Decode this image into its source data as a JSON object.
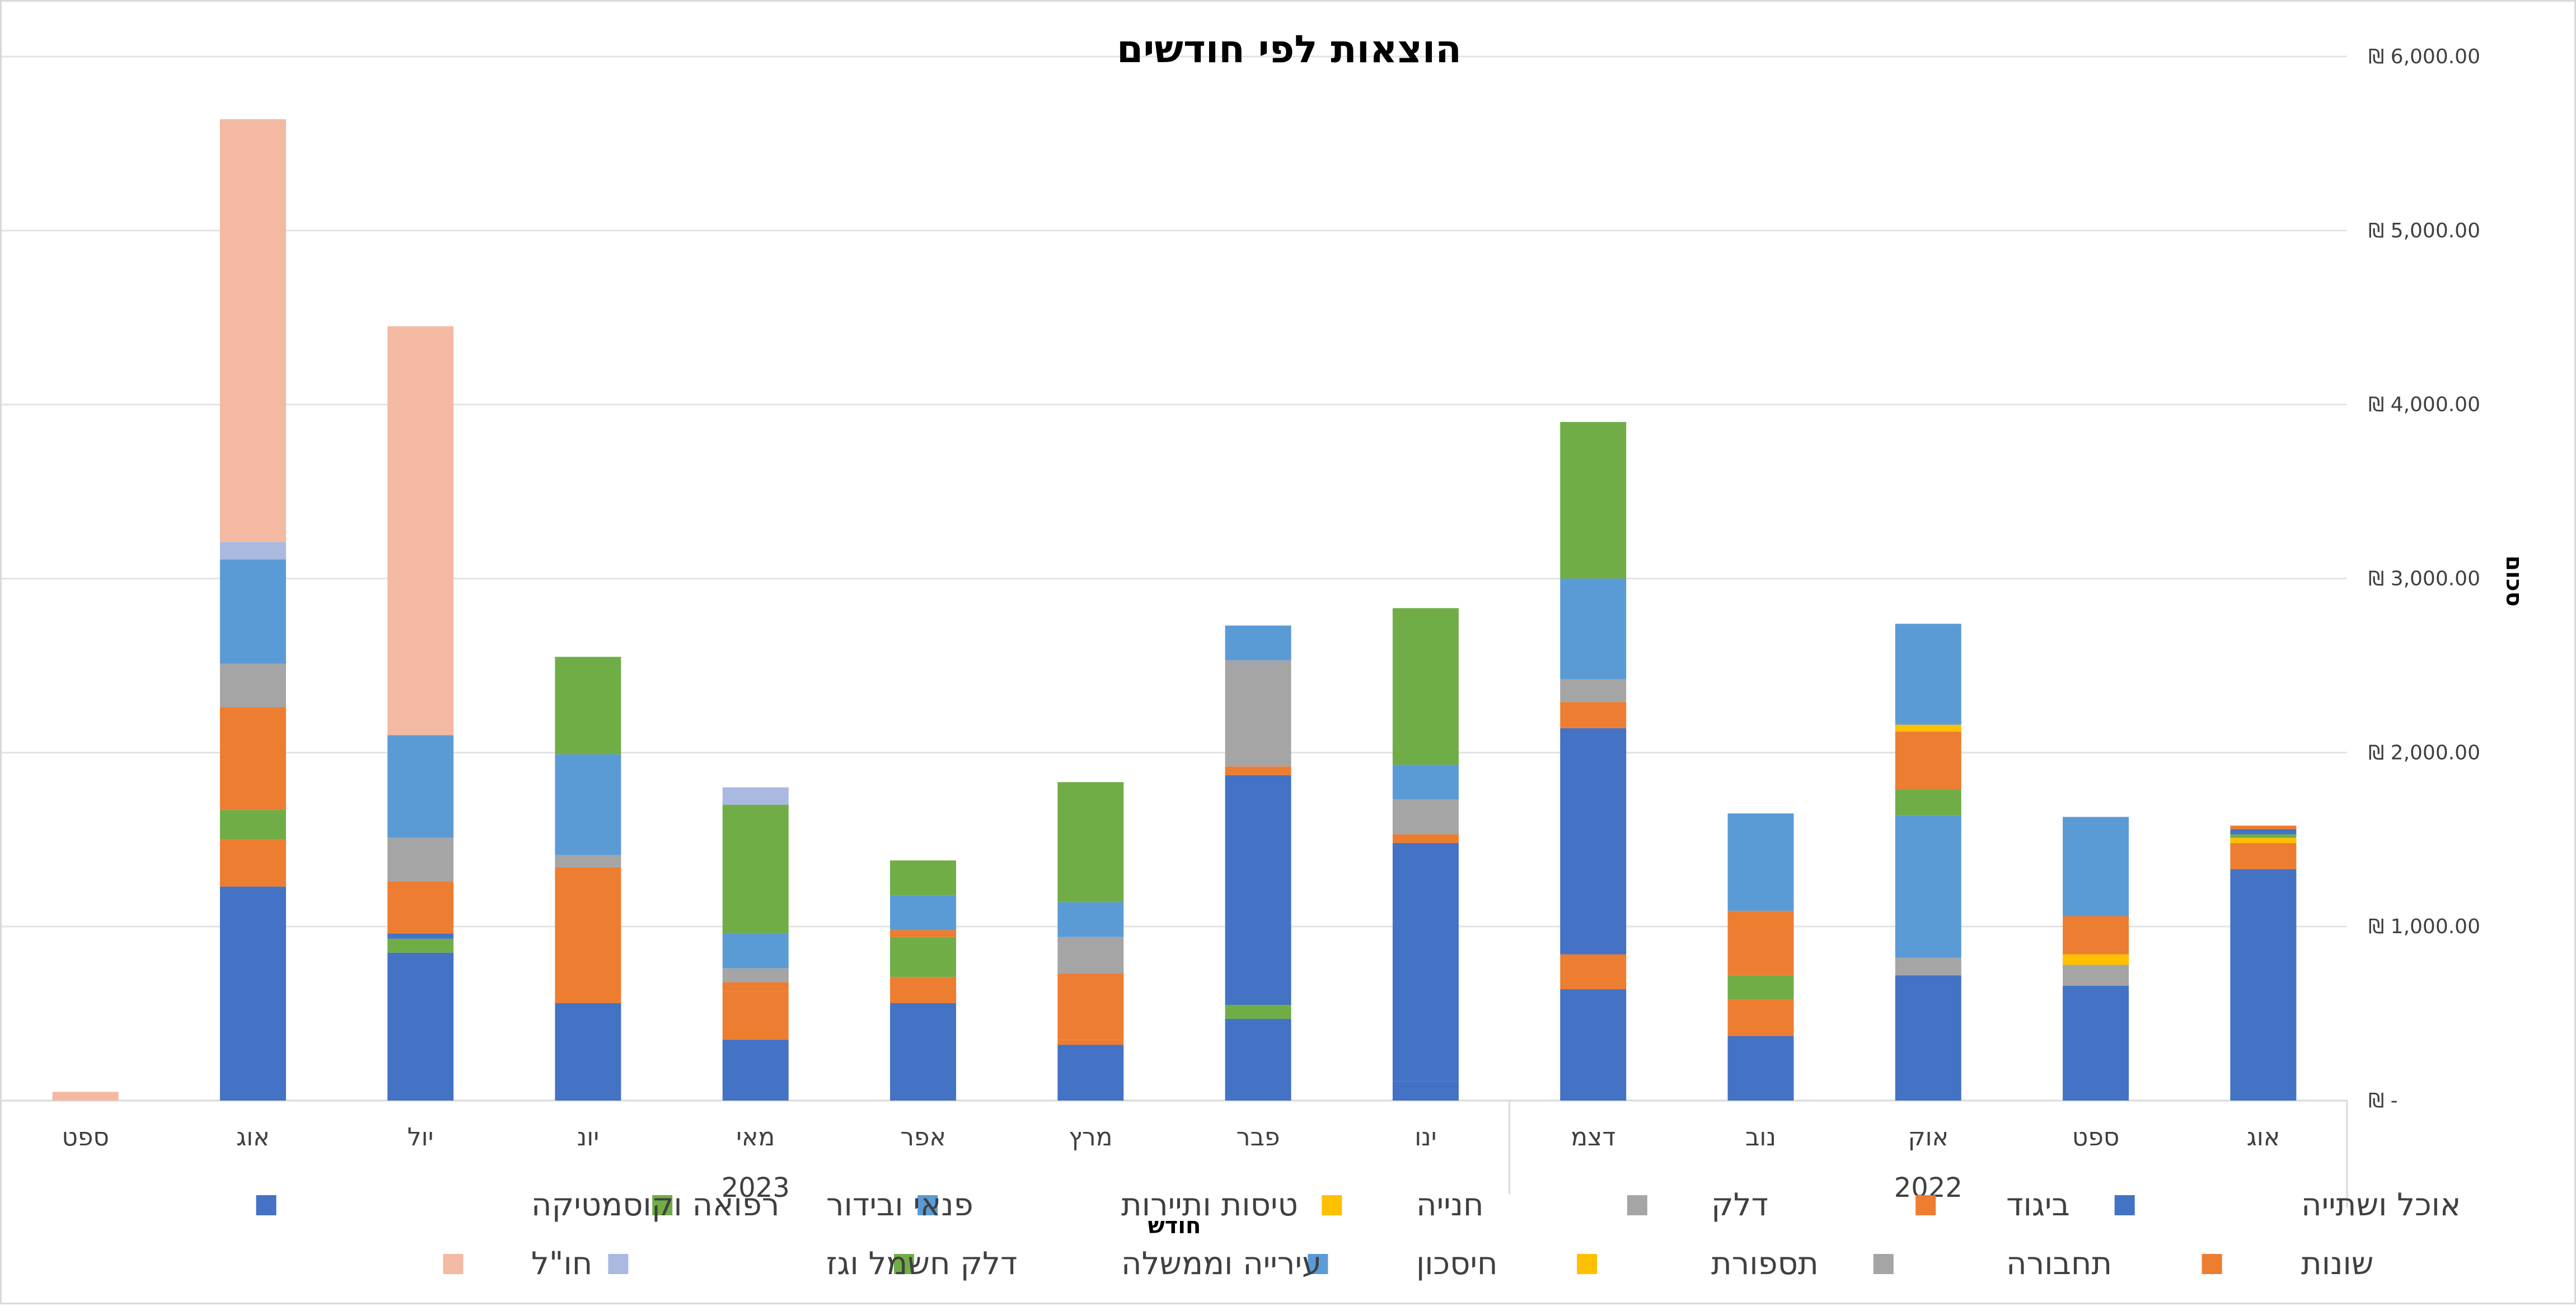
{
  "chart_data": {
    "type": "bar",
    "stacked": true,
    "title": "הוצאות לפי חודשים",
    "xlabel": "חודש",
    "ylabel": "סכום",
    "ylim": [
      0,
      6000
    ],
    "y_ticks": [
      "₪ -",
      "₪ 1,000.00",
      "₪ 2,000.00",
      "₪ 3,000.00",
      "₪ 4,000.00",
      "₪ 5,000.00",
      "₪ 6,000.00"
    ],
    "y_tick_values": [
      0,
      1000,
      2000,
      3000,
      4000,
      5000,
      6000
    ],
    "y_axis_position": "right",
    "x_direction": "right-to-left",
    "grid": true,
    "legend_position": "bottom",
    "categories": [
      "אוג",
      "ספט",
      "אוק",
      "נוב",
      "דצמ",
      "ינו",
      "פבר",
      "מרץ",
      "אפר",
      "מאי",
      "יונ",
      "יול",
      "אוג",
      "ספט"
    ],
    "year_groups": [
      {
        "label": "2022",
        "count": 5
      },
      {
        "label": "2023",
        "count": 9
      }
    ],
    "series": [
      {
        "name": "אוכל ושתייה",
        "color": "#4472C4",
        "values": [
          1330,
          660,
          720,
          370,
          640,
          110,
          470,
          320,
          560,
          350,
          560,
          850,
          1230,
          0
        ]
      },
      {
        "name": "ביגוד",
        "color": "#ED7D31",
        "values": [
          150,
          0,
          0,
          210,
          200,
          0,
          0,
          30,
          150,
          280,
          0,
          0,
          270,
          0
        ]
      },
      {
        "name": "דלק",
        "color": "#A5A5A5",
        "values": [
          0,
          120,
          100,
          0,
          0,
          0,
          0,
          0,
          0,
          0,
          0,
          0,
          0,
          0
        ]
      },
      {
        "name": "חנייה",
        "color": "#FFC000",
        "values": [
          30,
          60,
          0,
          0,
          0,
          0,
          0,
          0,
          0,
          0,
          0,
          0,
          0,
          0
        ]
      },
      {
        "name": "טיסות ותיירות",
        "color": "#5B9BD5",
        "values": [
          0,
          0,
          820,
          0,
          0,
          0,
          0,
          0,
          0,
          0,
          0,
          0,
          0,
          0
        ]
      },
      {
        "name": "פנאי ובידור",
        "color": "#70AD47",
        "values": [
          20,
          0,
          150,
          140,
          0,
          0,
          80,
          0,
          230,
          0,
          0,
          80,
          170,
          0
        ]
      },
      {
        "name": "רפואה וקוסמטיקה",
        "color": "#4472C4",
        "values": [
          30,
          0,
          0,
          0,
          1300,
          1370,
          1320,
          0,
          0,
          0,
          0,
          30,
          0,
          0
        ]
      },
      {
        "name": "שונות",
        "color": "#ED7D31",
        "values": [
          20,
          220,
          330,
          370,
          150,
          50,
          50,
          380,
          40,
          50,
          780,
          300,
          590,
          0
        ]
      },
      {
        "name": "תחבורה",
        "color": "#A5A5A5",
        "values": [
          0,
          0,
          0,
          0,
          130,
          200,
          610,
          210,
          0,
          80,
          70,
          250,
          250,
          0
        ]
      },
      {
        "name": "תספורת",
        "color": "#FFC000",
        "values": [
          0,
          0,
          40,
          0,
          0,
          0,
          0,
          0,
          0,
          0,
          0,
          0,
          0,
          0
        ]
      },
      {
        "name": "חיסכון",
        "color": "#5B9BD5",
        "values": [
          0,
          570,
          580,
          560,
          580,
          200,
          200,
          200,
          200,
          200,
          580,
          590,
          600,
          0
        ]
      },
      {
        "name": "עירייה וממשלה",
        "color": "#70AD47",
        "values": [
          0,
          0,
          0,
          0,
          900,
          900,
          0,
          690,
          200,
          740,
          560,
          0,
          0,
          0
        ]
      },
      {
        "name": "דלק חשמל וגז",
        "color": "#A9B9E0",
        "values": [
          0,
          0,
          0,
          0,
          0,
          0,
          0,
          0,
          0,
          100,
          0,
          0,
          100,
          0
        ]
      },
      {
        "name": "חו\"ל",
        "color": "#F4B9A3",
        "values": [
          0,
          0,
          0,
          0,
          0,
          0,
          0,
          0,
          0,
          0,
          0,
          2350,
          2430,
          50
        ]
      }
    ]
  }
}
